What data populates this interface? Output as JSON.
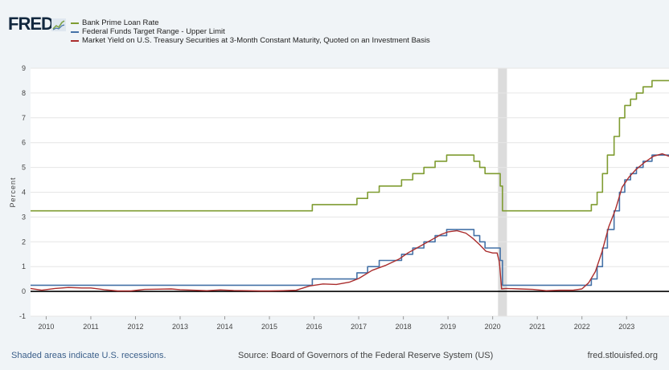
{
  "header": {
    "logo_text": "FRED",
    "logo_icon": "line-chart-icon"
  },
  "footer": {
    "recession_note": "Shaded areas indicate U.S. recessions.",
    "source": "Source: Board of Governors of the Federal Reserve System (US)",
    "site": "fred.stlouisfed.org"
  },
  "colors": {
    "background": "#f0f4f7",
    "plot_bg": "#ffffff",
    "gridline": "#e6e6e6",
    "recession": "#dcdcdc",
    "zero_line": "#000000"
  },
  "chart_data": {
    "type": "line",
    "title": "",
    "xlabel": "",
    "ylabel": "Percent",
    "xlim": [
      2009.65,
      2023.95
    ],
    "ylim": [
      -1,
      9
    ],
    "yticks": [
      -1,
      0,
      1,
      2,
      3,
      4,
      5,
      6,
      7,
      8,
      9
    ],
    "xticks": [
      "2010",
      "2011",
      "2012",
      "2013",
      "2014",
      "2015",
      "2016",
      "2017",
      "2018",
      "2019",
      "2020",
      "2021",
      "2022",
      "2023"
    ],
    "grid": true,
    "legend_position": "top-left",
    "recessions": [
      [
        2020.12,
        2020.32
      ]
    ],
    "series": [
      {
        "name": "Bank Prime Loan Rate",
        "color": "#7f9c31",
        "shape": "step",
        "points": [
          [
            2009.65,
            3.25
          ],
          [
            2015.96,
            3.5
          ],
          [
            2016.96,
            3.75
          ],
          [
            2017.2,
            4.0
          ],
          [
            2017.46,
            4.25
          ],
          [
            2017.96,
            4.5
          ],
          [
            2018.21,
            4.75
          ],
          [
            2018.46,
            5.0
          ],
          [
            2018.71,
            5.25
          ],
          [
            2018.97,
            5.5
          ],
          [
            2019.58,
            5.25
          ],
          [
            2019.71,
            5.0
          ],
          [
            2019.83,
            4.75
          ],
          [
            2020.17,
            4.25
          ],
          [
            2020.22,
            3.25
          ],
          [
            2022.21,
            3.5
          ],
          [
            2022.34,
            4.0
          ],
          [
            2022.46,
            4.75
          ],
          [
            2022.57,
            5.5
          ],
          [
            2022.72,
            6.25
          ],
          [
            2022.84,
            7.0
          ],
          [
            2022.96,
            7.5
          ],
          [
            2023.09,
            7.75
          ],
          [
            2023.22,
            8.0
          ],
          [
            2023.37,
            8.25
          ],
          [
            2023.57,
            8.5
          ],
          [
            2023.95,
            8.5
          ]
        ]
      },
      {
        "name": "Federal Funds Target Range - Upper Limit",
        "color": "#4572a7",
        "shape": "step",
        "points": [
          [
            2009.65,
            0.25
          ],
          [
            2015.96,
            0.5
          ],
          [
            2016.96,
            0.75
          ],
          [
            2017.2,
            1.0
          ],
          [
            2017.46,
            1.25
          ],
          [
            2017.96,
            1.5
          ],
          [
            2018.21,
            1.75
          ],
          [
            2018.46,
            2.0
          ],
          [
            2018.71,
            2.25
          ],
          [
            2018.97,
            2.5
          ],
          [
            2019.58,
            2.25
          ],
          [
            2019.71,
            2.0
          ],
          [
            2019.83,
            1.75
          ],
          [
            2020.17,
            1.25
          ],
          [
            2020.22,
            0.25
          ],
          [
            2022.21,
            0.5
          ],
          [
            2022.34,
            1.0
          ],
          [
            2022.46,
            1.75
          ],
          [
            2022.57,
            2.5
          ],
          [
            2022.72,
            3.25
          ],
          [
            2022.84,
            4.0
          ],
          [
            2022.96,
            4.5
          ],
          [
            2023.09,
            4.75
          ],
          [
            2023.22,
            5.0
          ],
          [
            2023.37,
            5.25
          ],
          [
            2023.57,
            5.5
          ],
          [
            2023.95,
            5.5
          ]
        ]
      },
      {
        "name": "Market Yield on U.S. Treasury Securities at 3-Month Constant Maturity, Quoted on an Investment Basis",
        "color": "#aa2d2d",
        "shape": "line",
        "points": [
          [
            2009.65,
            0.12
          ],
          [
            2009.9,
            0.05
          ],
          [
            2010.2,
            0.12
          ],
          [
            2010.5,
            0.16
          ],
          [
            2010.8,
            0.14
          ],
          [
            2011.0,
            0.14
          ],
          [
            2011.3,
            0.07
          ],
          [
            2011.6,
            0.02
          ],
          [
            2011.9,
            0.02
          ],
          [
            2012.2,
            0.08
          ],
          [
            2012.5,
            0.09
          ],
          [
            2012.8,
            0.1
          ],
          [
            2013.0,
            0.07
          ],
          [
            2013.3,
            0.05
          ],
          [
            2013.6,
            0.03
          ],
          [
            2013.9,
            0.06
          ],
          [
            2014.2,
            0.04
          ],
          [
            2014.5,
            0.03
          ],
          [
            2014.8,
            0.02
          ],
          [
            2015.0,
            0.02
          ],
          [
            2015.3,
            0.03
          ],
          [
            2015.6,
            0.05
          ],
          [
            2015.9,
            0.22
          ],
          [
            2016.2,
            0.3
          ],
          [
            2016.5,
            0.28
          ],
          [
            2016.8,
            0.38
          ],
          [
            2017.0,
            0.52
          ],
          [
            2017.3,
            0.85
          ],
          [
            2017.6,
            1.05
          ],
          [
            2017.9,
            1.3
          ],
          [
            2018.1,
            1.55
          ],
          [
            2018.35,
            1.8
          ],
          [
            2018.6,
            2.05
          ],
          [
            2018.85,
            2.3
          ],
          [
            2019.0,
            2.4
          ],
          [
            2019.2,
            2.45
          ],
          [
            2019.4,
            2.35
          ],
          [
            2019.55,
            2.15
          ],
          [
            2019.7,
            1.9
          ],
          [
            2019.85,
            1.62
          ],
          [
            2020.0,
            1.55
          ],
          [
            2020.1,
            1.55
          ],
          [
            2020.15,
            1.2
          ],
          [
            2020.2,
            0.1
          ],
          [
            2020.3,
            0.12
          ],
          [
            2020.6,
            0.1
          ],
          [
            2020.9,
            0.08
          ],
          [
            2021.2,
            0.03
          ],
          [
            2021.5,
            0.05
          ],
          [
            2021.8,
            0.05
          ],
          [
            2022.0,
            0.1
          ],
          [
            2022.15,
            0.35
          ],
          [
            2022.3,
            0.8
          ],
          [
            2022.45,
            1.6
          ],
          [
            2022.6,
            2.6
          ],
          [
            2022.75,
            3.3
          ],
          [
            2022.9,
            4.2
          ],
          [
            2023.05,
            4.6
          ],
          [
            2023.2,
            4.9
          ],
          [
            2023.4,
            5.2
          ],
          [
            2023.6,
            5.45
          ],
          [
            2023.8,
            5.55
          ],
          [
            2023.95,
            5.45
          ]
        ]
      }
    ]
  }
}
